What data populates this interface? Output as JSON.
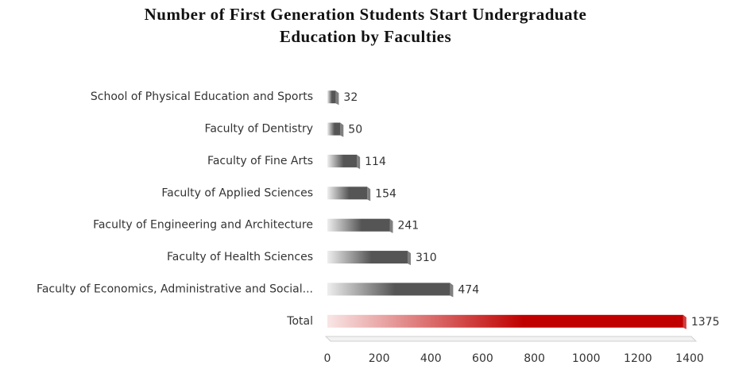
{
  "chart_data": {
    "type": "hbar",
    "title": [
      "Number of First Generation Students Start Undergraduate",
      "Education by Faculties"
    ],
    "categories": [
      "School of Physical Education and Sports",
      "Faculty of Dentistry",
      "Faculty of Fine Arts",
      "Faculty of Applied Sciences",
      "Faculty of Engineering and Architecture",
      "Faculty of Health Sciences",
      "Faculty of Economics, Administrative and Social...",
      "Total"
    ],
    "values": [
      32,
      50,
      114,
      154,
      241,
      310,
      474,
      1375
    ],
    "colors": [
      "#555555",
      "#555555",
      "#555555",
      "#555555",
      "#555555",
      "#555555",
      "#555555",
      "#c00000"
    ],
    "xlim": [
      0,
      1400
    ],
    "xticks": [
      0,
      200,
      400,
      600,
      800,
      1000,
      1200,
      1400
    ],
    "grid": false
  }
}
